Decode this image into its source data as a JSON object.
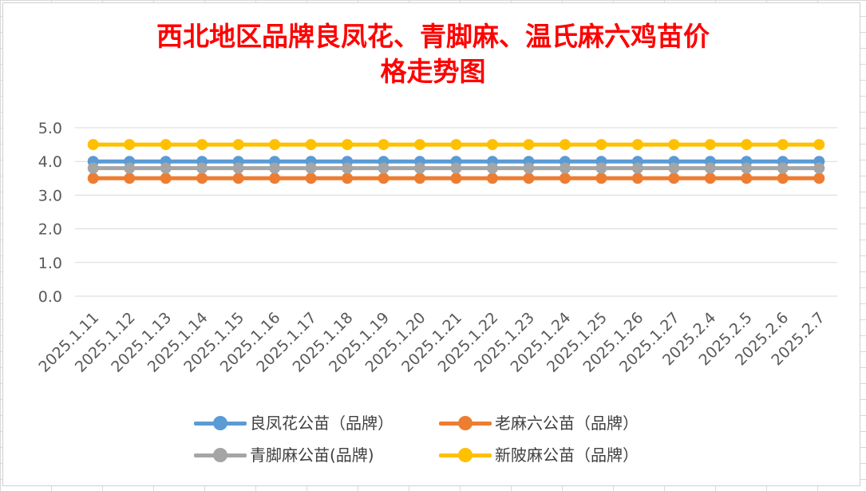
{
  "chart_data": {
    "type": "line",
    "title": "西北地区品牌良凤花、青脚麻、温氏麻六鸡苗价格走势图",
    "title_lines": [
      "西北地区品牌良凤花、青脚麻、温氏麻六鸡苗价",
      "格走势图"
    ],
    "categories": [
      "2025.1.11",
      "2025.1.12",
      "2025.1.13",
      "2025.1.14",
      "2025.1.15",
      "2025.1.16",
      "2025.1.17",
      "2025.1.18",
      "2025.1.19",
      "2025.1.20",
      "2025.1.21",
      "2025.1.22",
      "2025.1.23",
      "2025.1.24",
      "2025.1.25",
      "2025.1.26",
      "2025.1.27",
      "2025.2.4",
      "2025.2.5",
      "2025.2.6",
      "2025.2.7"
    ],
    "y_ticks": [
      "0.0",
      "1.0",
      "2.0",
      "3.0",
      "4.0",
      "5.0"
    ],
    "ylim": [
      0,
      5
    ],
    "grid": true,
    "legend_position": "bottom",
    "series": [
      {
        "name": "良凤花公苗（品牌）",
        "color": "#5b9bd5",
        "values": [
          4,
          4,
          4,
          4,
          4,
          4,
          4,
          4,
          4,
          4,
          4,
          4,
          4,
          4,
          4,
          4,
          4,
          4,
          4,
          4,
          4
        ]
      },
      {
        "name": "老麻六公苗（品牌）",
        "color": "#ed7d31",
        "values": [
          3.5,
          3.5,
          3.5,
          3.5,
          3.5,
          3.5,
          3.5,
          3.5,
          3.5,
          3.5,
          3.5,
          3.5,
          3.5,
          3.5,
          3.5,
          3.5,
          3.5,
          3.5,
          3.5,
          3.5,
          3.5
        ]
      },
      {
        "name": "青脚麻公苗(品牌)",
        "color": "#a5a5a5",
        "values": [
          3.8,
          3.8,
          3.8,
          3.8,
          3.8,
          3.8,
          3.8,
          3.8,
          3.8,
          3.8,
          3.8,
          3.8,
          3.8,
          3.8,
          3.8,
          3.8,
          3.8,
          3.8,
          3.8,
          3.8,
          3.8
        ]
      },
      {
        "name": "新陂麻公苗（品牌）",
        "color": "#ffc000",
        "values": [
          4.5,
          4.5,
          4.5,
          4.5,
          4.5,
          4.5,
          4.5,
          4.5,
          4.5,
          4.5,
          4.5,
          4.5,
          4.5,
          4.5,
          4.5,
          4.5,
          4.5,
          4.5,
          4.5,
          4.5,
          4.5
        ]
      }
    ]
  }
}
